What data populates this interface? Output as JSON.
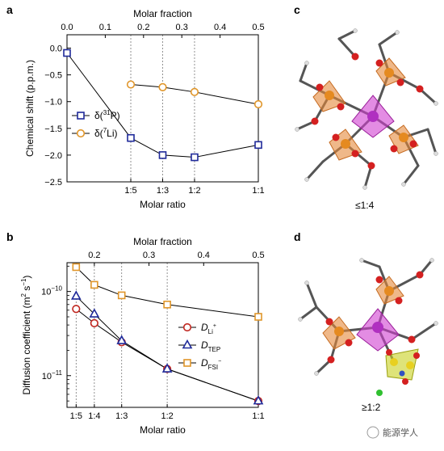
{
  "panels": {
    "a": "a",
    "b": "b",
    "c": "c",
    "d": "d"
  },
  "chart_data": [
    {
      "type": "scatter",
      "panel": "a",
      "top_xlabel": "Molar fraction",
      "top_ticks": [
        "0.0",
        "0.1",
        "0.2",
        "0.3",
        "0.4",
        "0.5"
      ],
      "top_tick_values": [
        0.0,
        0.1,
        0.2,
        0.3,
        0.4,
        0.5
      ],
      "xlim": [
        0.0,
        0.5
      ],
      "xlabel": "Molar ratio",
      "bottom_ticks": [
        "1:5",
        "1:3",
        "1:2",
        "1:1"
      ],
      "bottom_tick_values": [
        0.1667,
        0.25,
        0.3333,
        0.5
      ],
      "ylabel": "Chemical shift (p.p.m.)",
      "ylim": [
        -2.5,
        0.25
      ],
      "yticks": [
        "0.0",
        "−0.5",
        "−1.0",
        "−1.5",
        "−2.0",
        "−2.5"
      ],
      "ytick_values": [
        0.0,
        -0.5,
        -1.0,
        -1.5,
        -2.0,
        -2.5
      ],
      "legend_position": "left",
      "series": [
        {
          "name": "δ(³¹P)",
          "legend_prefix": "δ(",
          "legend_sup": "31",
          "legend_main": "P)",
          "color": "#1f2a9a",
          "marker": "square",
          "x": [
            0.0,
            0.1667,
            0.25,
            0.3333,
            0.5
          ],
          "y": [
            -0.09,
            -1.68,
            -2.0,
            -2.04,
            -1.81
          ]
        },
        {
          "name": "δ(⁷Li)",
          "legend_prefix": "δ(",
          "legend_sup": "7",
          "legend_main": "Li)",
          "color": "#e0962a",
          "marker": "circle",
          "x": [
            0.1667,
            0.25,
            0.3333,
            0.5
          ],
          "y": [
            -0.68,
            -0.73,
            -0.82,
            -1.05
          ]
        }
      ]
    },
    {
      "type": "scatter",
      "panel": "b",
      "top_xlabel": "Molar fraction",
      "top_ticks": [
        "0.2",
        "0.3",
        "0.4",
        "0.5"
      ],
      "top_tick_values": [
        0.2,
        0.3,
        0.4,
        0.5
      ],
      "xlim": [
        0.15,
        0.5
      ],
      "xlabel": "Molar ratio",
      "bottom_ticks": [
        "1:5",
        "1:4",
        "1:3",
        "1:2",
        "1:1"
      ],
      "bottom_tick_values": [
        0.1667,
        0.2,
        0.25,
        0.3333,
        0.5
      ],
      "ylabel": "Diffusion coefficient (m² s⁻¹)",
      "ylabel_parts": {
        "pre": "Diffusion coefficient (m",
        "sup1": "2",
        "mid": " s",
        "sup2": "−1",
        "post": ")"
      },
      "yscale": "log",
      "ylim": [
        4.2e-12,
        2.2e-10
      ],
      "yticks": [
        {
          "base": "10",
          "exp": "−10",
          "value": 1e-10
        },
        {
          "base": "10",
          "exp": "−11",
          "value": 1e-11
        }
      ],
      "legend_position": "right",
      "series": [
        {
          "name": "D_Li⁺",
          "legend_main": "D",
          "legend_sub": "Li",
          "legend_sup": "+",
          "color": "#c0261f",
          "marker": "circle",
          "x": [
            0.1667,
            0.2,
            0.25,
            0.3333,
            0.5
          ],
          "y": [
            6.2e-11,
            4.2e-11,
            2.5e-11,
            1.2e-11,
            5e-12
          ]
        },
        {
          "name": "D_TEP",
          "legend_main": "D",
          "legend_sub": "TEP",
          "legend_sup": "",
          "color": "#1f2a9a",
          "marker": "triangle",
          "x": [
            0.1667,
            0.2,
            0.25,
            0.3333,
            0.5
          ],
          "y": [
            8.8e-11,
            5.4e-11,
            2.6e-11,
            1.2e-11,
            5e-12
          ]
        },
        {
          "name": "D_FSI⁻",
          "legend_main": "D",
          "legend_sub": "FSI",
          "legend_sup": "−",
          "color": "#e0962a",
          "marker": "square",
          "x": [
            0.1667,
            0.2,
            0.25,
            0.3333,
            0.5
          ],
          "y": [
            1.95e-10,
            1.2e-10,
            9e-11,
            7e-11,
            5e-11
          ]
        }
      ]
    }
  ],
  "molecules": {
    "c": {
      "label": "≤1:4"
    },
    "d": {
      "label": "≥1:2"
    }
  },
  "watermark": {
    "text": "能源学人"
  }
}
